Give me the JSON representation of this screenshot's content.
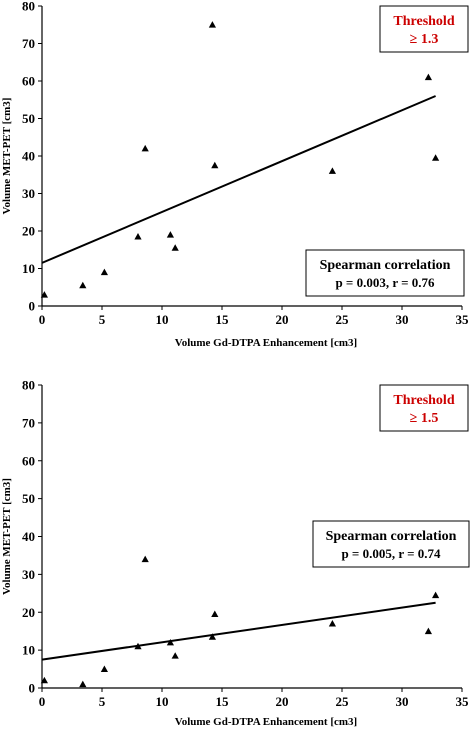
{
  "chart_data": [
    {
      "type": "scatter",
      "xlabel": "Volume Gd-DTPA Enhancement [cm3]",
      "ylabel": "Volume MET-PET [cm3]",
      "xlim": [
        0,
        35
      ],
      "ylim": [
        0,
        80
      ],
      "xticks": [
        "0",
        "5",
        "10",
        "15",
        "20",
        "25",
        "30",
        "35"
      ],
      "yticks": [
        "0",
        "10",
        "20",
        "30",
        "40",
        "50",
        "60",
        "70",
        "80"
      ],
      "threshold": {
        "line1": "Threshold",
        "line2": "≥ 1.3",
        "color": "#cc0000"
      },
      "stats": {
        "line1": "Spearman correlation",
        "line2": "p = 0.003, r = 0.76"
      },
      "points": [
        {
          "x": 0.2,
          "y": 3
        },
        {
          "x": 3.4,
          "y": 5.5
        },
        {
          "x": 5.2,
          "y": 9
        },
        {
          "x": 8.0,
          "y": 18.5
        },
        {
          "x": 8.6,
          "y": 42
        },
        {
          "x": 10.7,
          "y": 19
        },
        {
          "x": 11.1,
          "y": 15.5
        },
        {
          "x": 14.2,
          "y": 75
        },
        {
          "x": 14.4,
          "y": 37.5
        },
        {
          "x": 24.2,
          "y": 36
        },
        {
          "x": 32.2,
          "y": 61
        },
        {
          "x": 32.8,
          "y": 39.5
        }
      ],
      "trendline": {
        "x": [
          0,
          32.8
        ],
        "y": [
          11.5,
          56
        ]
      }
    },
    {
      "type": "scatter",
      "xlabel": "Volume Gd-DTPA Enhancement [cm3]",
      "ylabel": "Volume MET-PET [cm3]",
      "xlim": [
        0,
        35
      ],
      "ylim": [
        0,
        80
      ],
      "xticks": [
        "0",
        "5",
        "10",
        "15",
        "20",
        "25",
        "30",
        "35"
      ],
      "yticks": [
        "0",
        "10",
        "20",
        "30",
        "40",
        "50",
        "60",
        "70",
        "80"
      ],
      "threshold": {
        "line1": "Threshold",
        "line2": "≥ 1.5",
        "color": "#cc0000"
      },
      "stats": {
        "line1": "Spearman correlation",
        "line2": "p = 0.005, r = 0.74"
      },
      "points": [
        {
          "x": 0.2,
          "y": 2
        },
        {
          "x": 3.4,
          "y": 1
        },
        {
          "x": 5.2,
          "y": 5
        },
        {
          "x": 8.0,
          "y": 11
        },
        {
          "x": 8.6,
          "y": 34
        },
        {
          "x": 10.7,
          "y": 12
        },
        {
          "x": 11.1,
          "y": 8.5
        },
        {
          "x": 14.2,
          "y": 13.5
        },
        {
          "x": 14.4,
          "y": 19.5
        },
        {
          "x": 24.2,
          "y": 17
        },
        {
          "x": 32.2,
          "y": 15
        },
        {
          "x": 32.8,
          "y": 24.5
        }
      ],
      "trendline": {
        "x": [
          0,
          32.8
        ],
        "y": [
          7.5,
          22.5
        ]
      }
    }
  ]
}
